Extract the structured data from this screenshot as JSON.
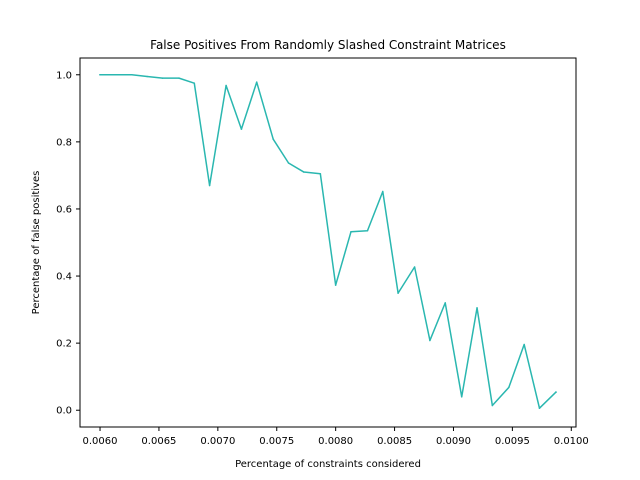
{
  "chart_data": {
    "type": "line",
    "title": "False Positives From Randomly Slashed Constraint Matrices",
    "xlabel": "Percentage of constraints considered",
    "ylabel": "Percentage of false positives",
    "xlim": [
      0.00583,
      0.01004
    ],
    "ylim": [
      -0.05,
      1.05
    ],
    "xticks": [
      0.006,
      0.0065,
      0.007,
      0.0075,
      0.008,
      0.0085,
      0.009,
      0.0095,
      0.01
    ],
    "xtick_labels": [
      "0.0060",
      "0.0065",
      "0.0070",
      "0.0075",
      "0.0080",
      "0.0085",
      "0.0090",
      "0.0095",
      "0.0100"
    ],
    "yticks": [
      0.0,
      0.2,
      0.4,
      0.6,
      0.8,
      1.0
    ],
    "ytick_labels": [
      "0.0",
      "0.2",
      "0.4",
      "0.6",
      "0.8",
      "1.0"
    ],
    "grid": false,
    "legend": "none",
    "series": [
      {
        "name": "series-1",
        "color": "#2ab7b0",
        "x": [
          0.006,
          0.00613,
          0.00627,
          0.0064,
          0.00653,
          0.00667,
          0.0068,
          0.00693,
          0.00707,
          0.0072,
          0.00733,
          0.00747,
          0.0076,
          0.00773,
          0.00787,
          0.008,
          0.00813,
          0.00827,
          0.0084,
          0.00853,
          0.00867,
          0.0088,
          0.00893,
          0.00907,
          0.0092,
          0.00933,
          0.00947,
          0.0096,
          0.00973,
          0.00987
        ],
        "y": [
          1.0,
          1.0,
          1.0,
          0.995,
          0.99,
          0.99,
          0.975,
          0.67,
          0.968,
          0.838,
          0.978,
          0.808,
          0.737,
          0.71,
          0.705,
          0.373,
          0.532,
          0.535,
          0.652,
          0.349,
          0.427,
          0.208,
          0.32,
          0.04,
          0.305,
          0.014,
          0.068,
          0.196,
          0.006,
          0.054
        ]
      }
    ]
  }
}
